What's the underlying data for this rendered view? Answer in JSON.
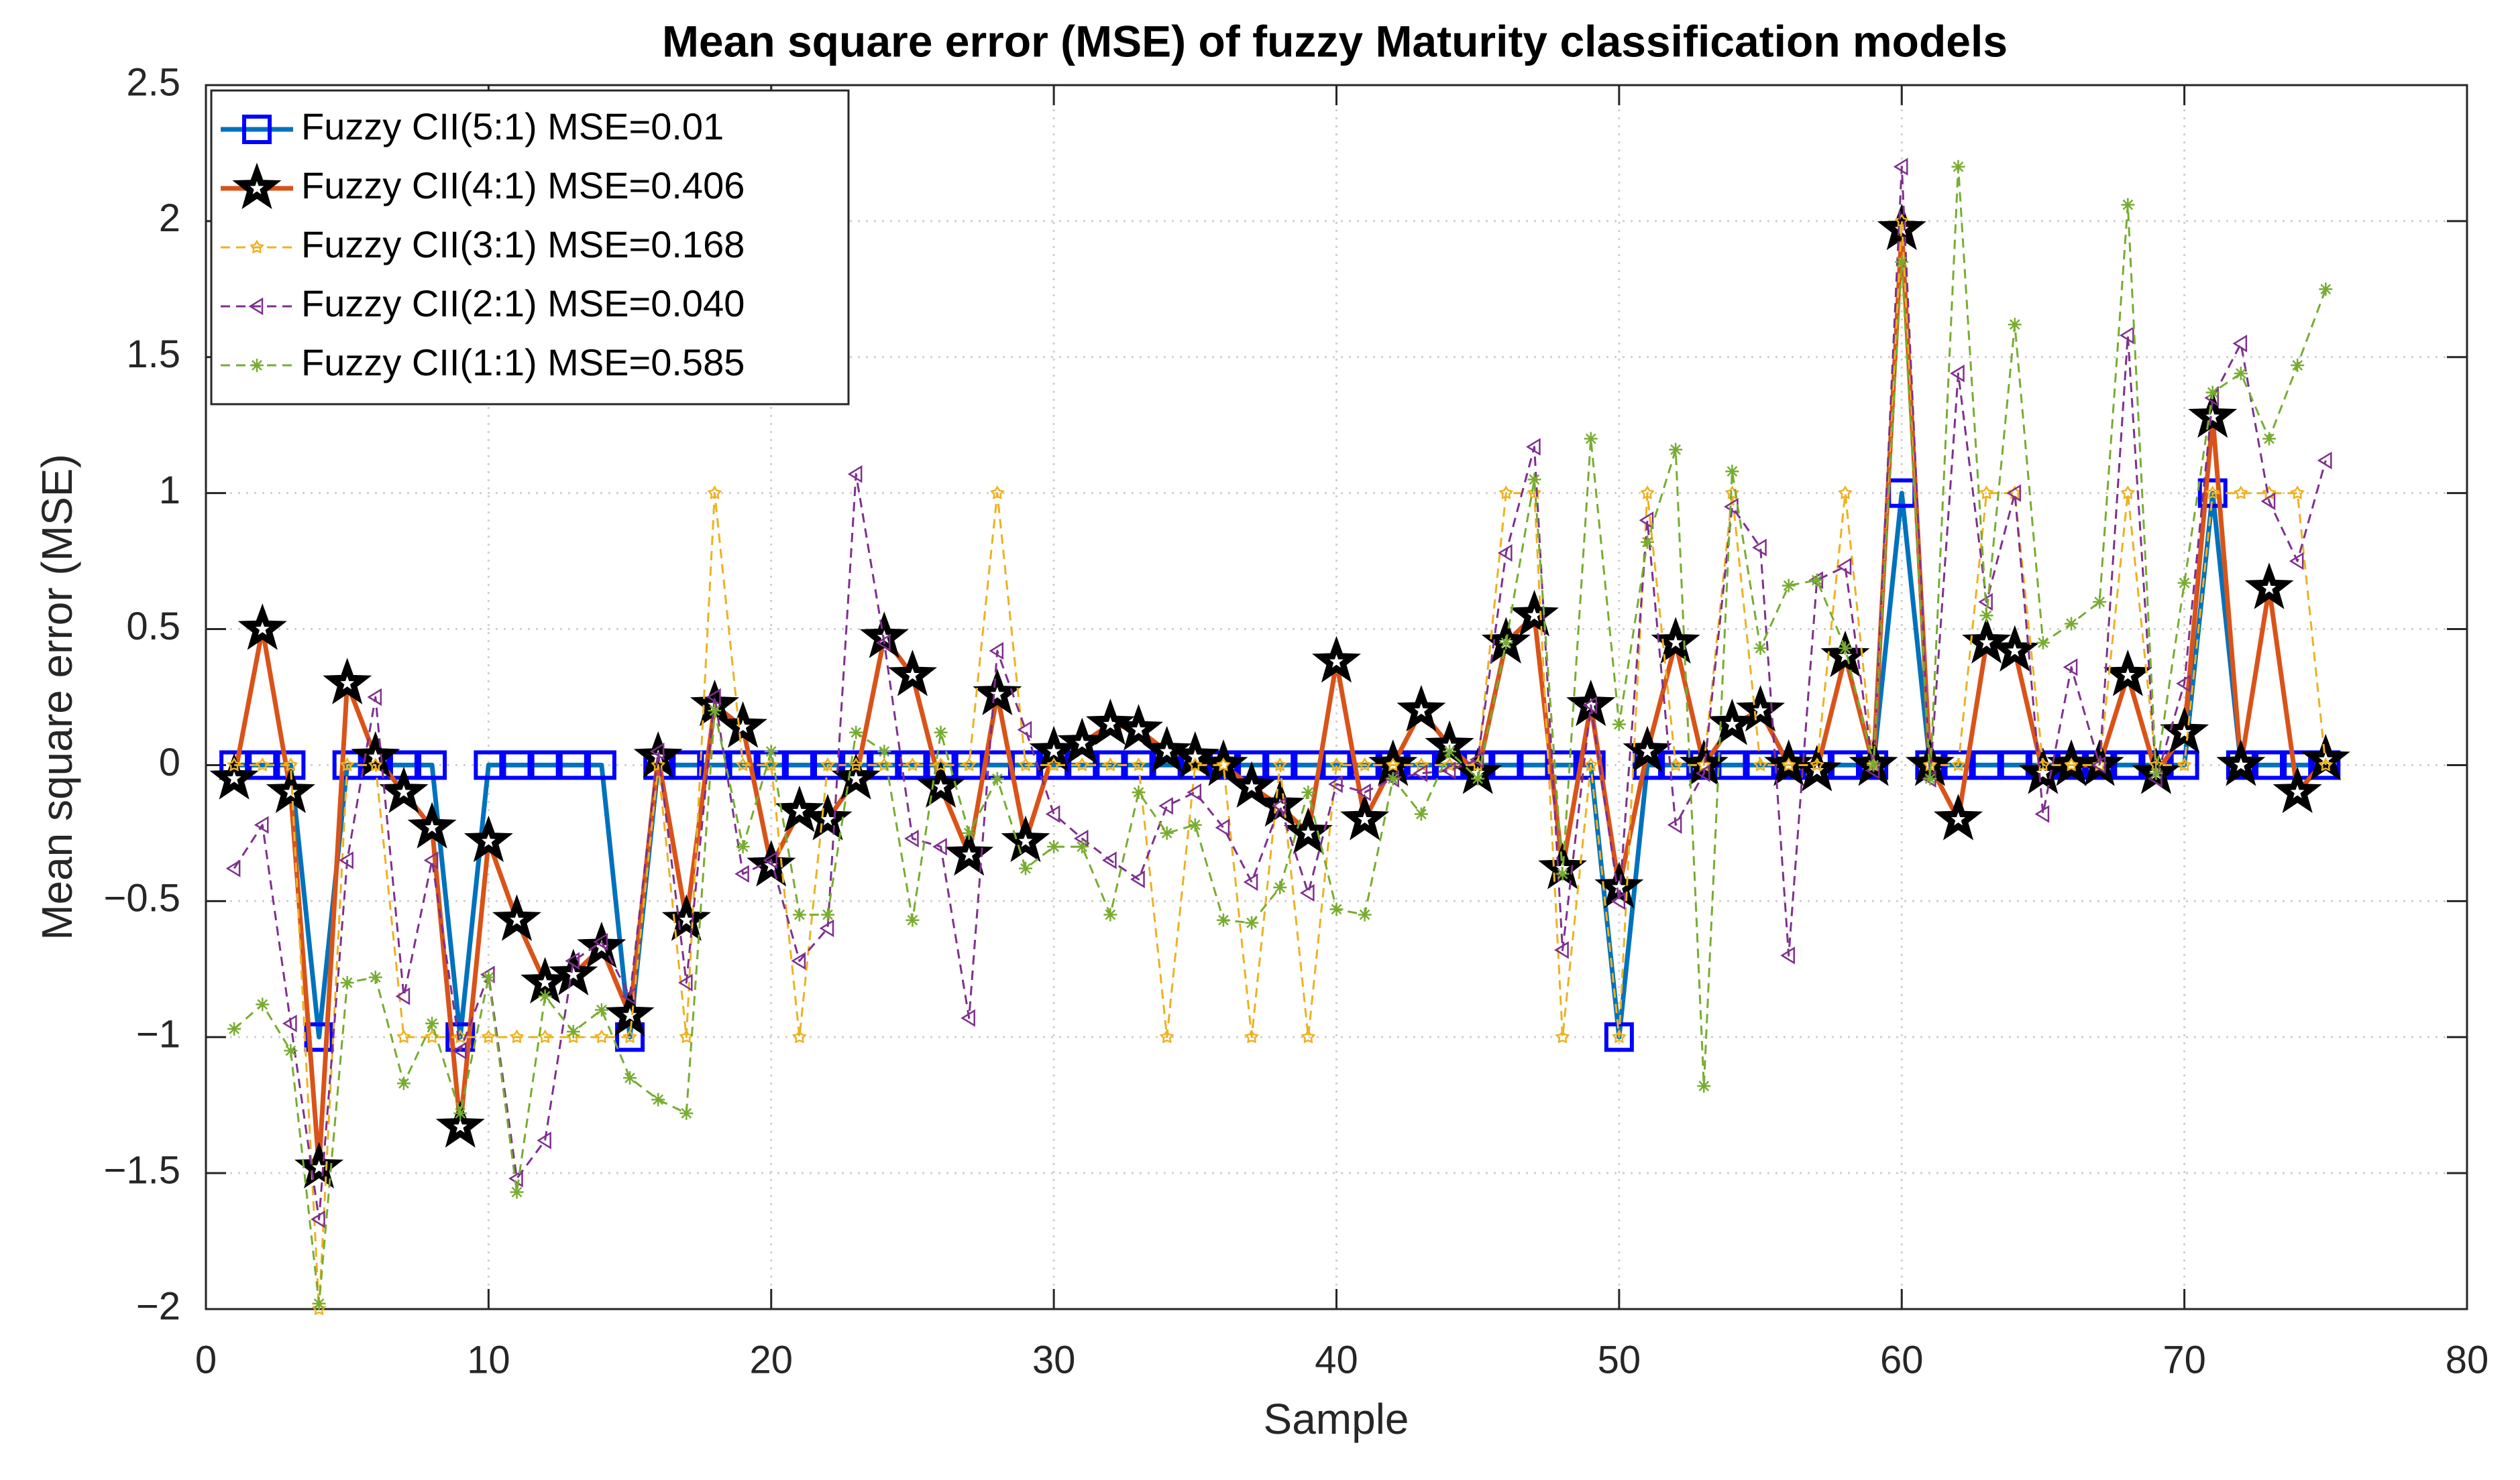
{
  "chart_data": {
    "type": "line",
    "title": "Mean square error (MSE) of fuzzy Maturity classification models",
    "x_label": "Sample",
    "y_label": "Mean square error (MSE)",
    "x": [
      1,
      2,
      3,
      4,
      5,
      6,
      7,
      8,
      9,
      10,
      11,
      12,
      13,
      14,
      15,
      16,
      17,
      18,
      19,
      20,
      21,
      22,
      23,
      24,
      25,
      26,
      27,
      28,
      29,
      30,
      31,
      32,
      33,
      34,
      35,
      36,
      37,
      38,
      39,
      40,
      41,
      42,
      43,
      44,
      45,
      46,
      47,
      48,
      49,
      50,
      51,
      52,
      53,
      54,
      55,
      56,
      57,
      58,
      59,
      60,
      61,
      62,
      63,
      64,
      65,
      66,
      67,
      68,
      69,
      70,
      71,
      72,
      73,
      74,
      75
    ],
    "series": [
      {
        "name": "Fuzzy CII(5:1) MSE=0.01",
        "color": "#0072bd",
        "marker_color": "#0000ff",
        "marker": "square",
        "line_style": "solid",
        "values": [
          0,
          0,
          0,
          -1,
          0,
          0,
          0,
          0,
          -1,
          0,
          0,
          0,
          0,
          0,
          -1,
          0,
          0,
          0,
          0,
          0,
          0,
          0,
          0,
          0,
          0,
          0,
          0,
          0,
          0,
          0,
          0,
          0,
          0,
          0,
          0,
          0,
          0,
          0,
          0,
          0,
          0,
          0,
          0,
          0,
          0,
          0,
          0,
          0,
          0,
          -1,
          0,
          0,
          0,
          0,
          0,
          0,
          0,
          0,
          0,
          1,
          0,
          0,
          0,
          0,
          0,
          0,
          0,
          0,
          0,
          0,
          1,
          0,
          0,
          0,
          0
        ]
      },
      {
        "name": "Fuzzy CII(4:1) MSE=0.406",
        "color": "#d95319",
        "marker_color": "#000000",
        "marker": "star",
        "line_style": "solid",
        "values": [
          -0.05,
          0.5,
          -0.1,
          -1.48,
          0.3,
          0.03,
          -0.1,
          -0.23,
          -1.33,
          -0.28,
          -0.57,
          -0.8,
          -0.77,
          -0.67,
          -0.92,
          0.03,
          -0.57,
          0.22,
          0.14,
          -0.37,
          -0.17,
          -0.2,
          -0.05,
          0.47,
          0.33,
          -0.08,
          -0.33,
          0.26,
          -0.28,
          0.05,
          0.08,
          0.15,
          0.13,
          0.05,
          0.03,
          0,
          -0.08,
          -0.15,
          -0.25,
          0.38,
          -0.2,
          0,
          0.2,
          0.07,
          -0.03,
          0.45,
          0.55,
          -0.38,
          0.22,
          -0.45,
          0.05,
          0.45,
          0,
          0.15,
          0.2,
          0,
          -0.02,
          0.4,
          0,
          1.97,
          0,
          -0.2,
          0.45,
          0.42,
          -0.03,
          0,
          0,
          0.33,
          -0.03,
          0.12,
          1.28,
          0,
          0.65,
          -0.1,
          0.02
        ]
      },
      {
        "name": "Fuzzy CII(3:1) MSE=0.168",
        "color": "#edb120",
        "marker_color": "#edb120",
        "marker": "hexagram",
        "line_style": "dashed",
        "values": [
          0,
          0,
          0,
          -2,
          0,
          0,
          -1,
          -1,
          -1,
          -1,
          -1,
          -1,
          -1,
          -1,
          -1,
          0,
          -1,
          1,
          0,
          0,
          -1,
          0,
          0,
          0,
          0,
          0,
          0,
          1,
          0,
          0,
          0,
          0,
          0,
          -1,
          0,
          0,
          -1,
          0,
          -1,
          0,
          0,
          0,
          0,
          0,
          0,
          1,
          1,
          -1,
          0,
          -1,
          1,
          0,
          0,
          1,
          0,
          0,
          0,
          1,
          0,
          2,
          0,
          0,
          1,
          1,
          0,
          0,
          0,
          1,
          0,
          0,
          1,
          1,
          1,
          1,
          0
        ]
      },
      {
        "name": "Fuzzy CII(2:1) MSE=0.040",
        "color": "#7e2f8e",
        "marker_color": "#7e2f8e",
        "marker": "triangle-left",
        "line_style": "dashed",
        "values": [
          -0.38,
          -0.22,
          -0.95,
          -1.67,
          -0.35,
          0.25,
          -0.85,
          -0.35,
          -1.05,
          -0.77,
          -1.52,
          -1.38,
          -0.72,
          -0.65,
          -0.85,
          0.05,
          -0.8,
          0.25,
          -0.4,
          -0.35,
          -0.72,
          -0.6,
          1.07,
          0.45,
          -0.27,
          -0.3,
          -0.93,
          0.42,
          0.13,
          -0.18,
          -0.27,
          -0.35,
          -0.42,
          -0.15,
          -0.1,
          -0.23,
          -0.43,
          -0.15,
          -0.47,
          -0.07,
          -0.1,
          -0.05,
          -0.03,
          -0.02,
          0.02,
          0.78,
          1.17,
          -0.68,
          0.22,
          -0.5,
          0.9,
          -0.22,
          -0.03,
          0.95,
          0.8,
          -0.7,
          0.68,
          0.73,
          -0.02,
          2.2,
          -0.05,
          1.44,
          0.6,
          1,
          -0.18,
          0.36,
          0,
          1.58,
          -0.05,
          0.3,
          1.35,
          1.55,
          0.97,
          0.75,
          1.12
        ]
      },
      {
        "name": "Fuzzy CII(1:1) MSE=0.585",
        "color": "#77ac30",
        "marker_color": "#77ac30",
        "marker": "asterisk",
        "line_style": "dashed",
        "values": [
          -0.97,
          -0.88,
          -1.05,
          -1.98,
          -0.8,
          -0.78,
          -1.17,
          -0.95,
          -1.28,
          -0.78,
          -1.57,
          -0.85,
          -0.98,
          -0.9,
          -1.15,
          -1.23,
          -1.28,
          0.2,
          -0.3,
          0.05,
          -0.55,
          -0.55,
          0.12,
          0.05,
          -0.57,
          0.12,
          -0.25,
          -0.05,
          -0.38,
          -0.3,
          -0.3,
          -0.55,
          -0.1,
          -0.25,
          -0.22,
          -0.57,
          -0.58,
          -0.45,
          -0.1,
          -0.53,
          -0.55,
          -0.05,
          -0.18,
          0.05,
          -0.05,
          0.45,
          1.05,
          -0.4,
          1.2,
          0.15,
          0.82,
          1.16,
          -1.18,
          1.08,
          0.43,
          0.66,
          0.68,
          0.43,
          0,
          1.85,
          -0.05,
          2.2,
          0.55,
          1.62,
          0.45,
          0.52,
          0.6,
          2.06,
          -0.03,
          0.67,
          1.37,
          1.44,
          1.2,
          1.47,
          1.75
        ]
      }
    ],
    "xlim": [
      0,
      80
    ],
    "ylim": [
      -2,
      2.5
    ],
    "xticks": [
      0,
      10,
      20,
      30,
      40,
      50,
      60,
      70,
      80
    ],
    "yticks": [
      {
        "value": -2,
        "label": "−2"
      },
      {
        "value": -1.5,
        "label": "−1.5"
      },
      {
        "value": -1,
        "label": "−1"
      },
      {
        "value": -0.5,
        "label": "−0.5"
      },
      0,
      0.5,
      1,
      1.5,
      2,
      2.5
    ],
    "grid": true,
    "legend": "northwest"
  }
}
